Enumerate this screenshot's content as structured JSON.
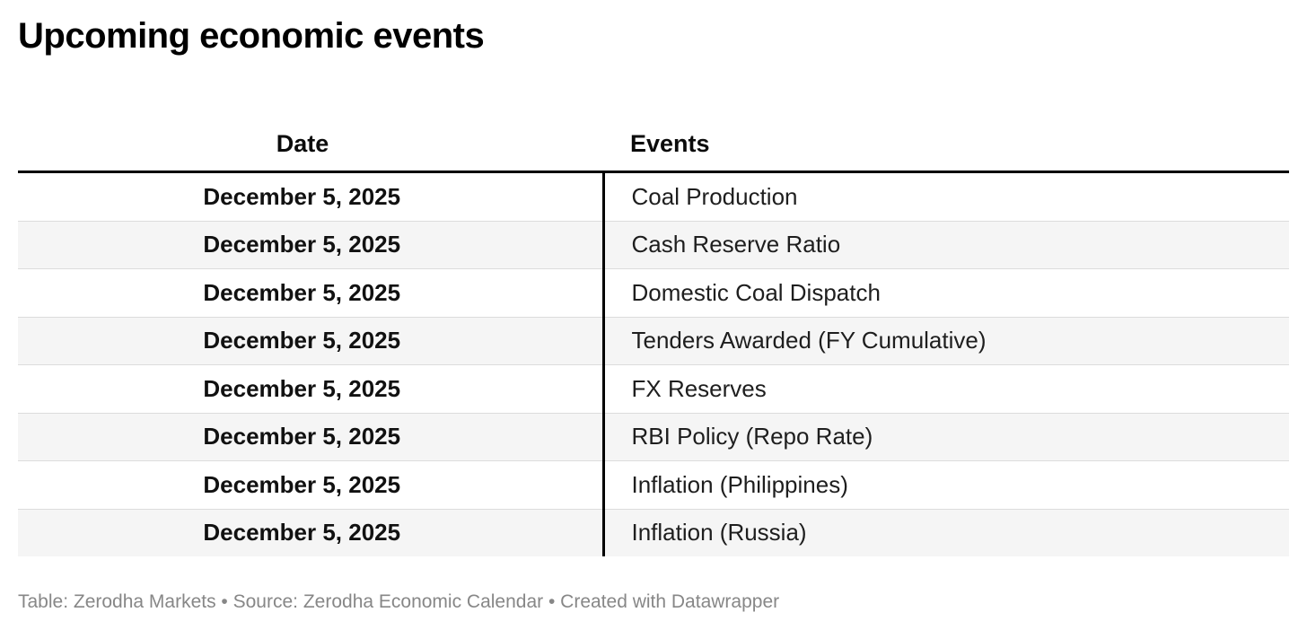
{
  "title": "Upcoming economic events",
  "footer": "Table: Zerodha Markets • Source: Zerodha Economic Calendar • Created with Datawrapper",
  "chart_data": {
    "type": "table",
    "title": "Upcoming economic events",
    "columns": [
      "Date",
      "Events"
    ],
    "rows": [
      [
        "December 5, 2025",
        "Coal Production"
      ],
      [
        "December 5, 2025",
        "Cash Reserve Ratio"
      ],
      [
        "December 5, 2025",
        "Domestic Coal Dispatch"
      ],
      [
        "December 5, 2025",
        "Tenders Awarded (FY Cumulative)"
      ],
      [
        "December 5, 2025",
        "FX Reserves"
      ],
      [
        "December 5, 2025",
        "RBI Policy (Repo Rate)"
      ],
      [
        "December 5, 2025",
        "Inflation (Philippines)"
      ],
      [
        "December 5, 2025",
        "Inflation (Russia)"
      ]
    ],
    "layout": {
      "date_column_align": "center",
      "events_column_align": "left",
      "alternating_rows": true
    }
  },
  "colors": {
    "background": "#ffffff",
    "title_text": "#000000",
    "body_text": "#1e1e1e",
    "header_rule": "#000000",
    "column_divider": "#000000",
    "row_separator": "#dcdcdc",
    "row_alt_background": "#f5f5f5",
    "footer_text": "#878787"
  }
}
